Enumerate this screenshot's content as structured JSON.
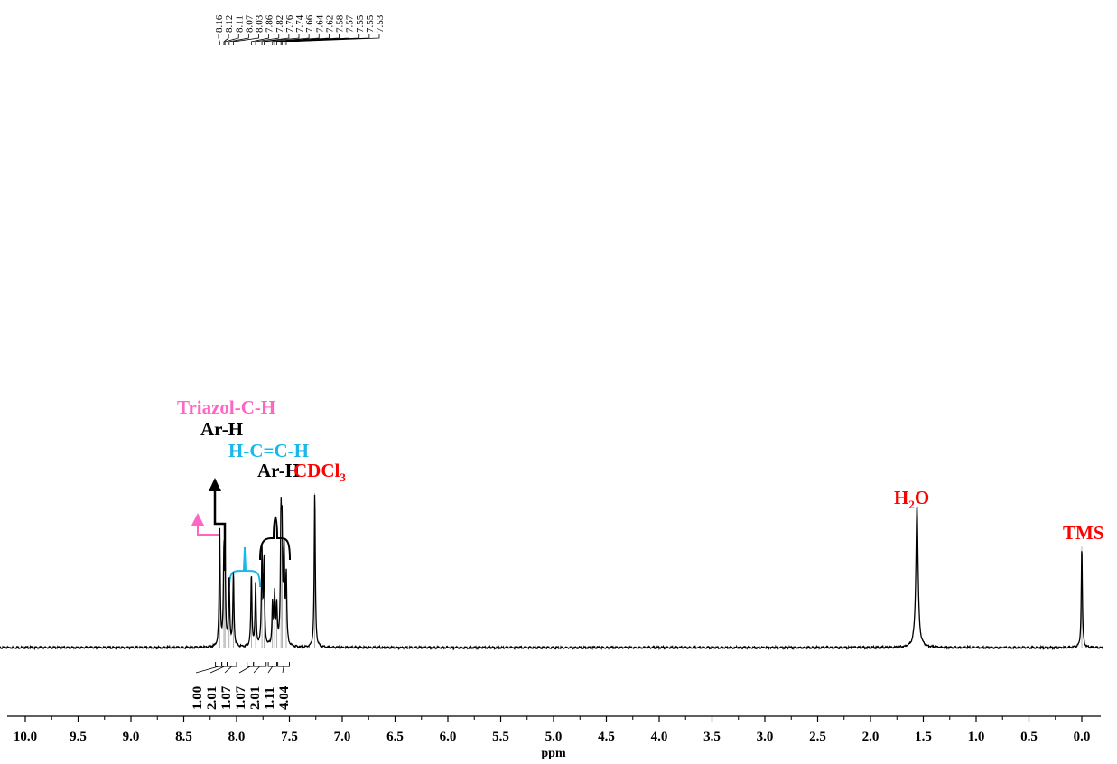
{
  "chart_data": {
    "type": "line",
    "xlabel": "ppm",
    "x_reversed": true,
    "xlim": [
      10.0,
      0.0
    ],
    "x_ticks": [
      "10.0",
      "9.5",
      "9.0",
      "8.5",
      "8.0",
      "7.5",
      "7.0",
      "6.5",
      "6.0",
      "5.5",
      "5.0",
      "4.5",
      "4.0",
      "3.5",
      "3.0",
      "2.5",
      "2.0",
      "1.5",
      "1.0",
      "0.5",
      "0.0"
    ],
    "peak_list": [
      "8.16",
      "8.12",
      "8.11",
      "8.07",
      "8.03",
      "7.86",
      "7.82",
      "7.76",
      "7.74",
      "7.66",
      "7.64",
      "7.62",
      "7.58",
      "7.57",
      "7.55",
      "7.55",
      "7.53"
    ],
    "integrals": [
      {
        "label": "1.00",
        "from": 8.2,
        "to": 8.14
      },
      {
        "label": "2.01",
        "from": 8.14,
        "to": 8.09
      },
      {
        "label": "1.07",
        "from": 8.09,
        "to": 8.0
      },
      {
        "label": "1.07",
        "from": 7.9,
        "to": 7.84
      },
      {
        "label": "2.01",
        "from": 7.84,
        "to": 7.72
      },
      {
        "label": "1.11",
        "from": 7.7,
        "to": 7.62
      },
      {
        "label": "4.04",
        "from": 7.61,
        "to": 7.5
      }
    ],
    "peaks": [
      {
        "x": 8.16,
        "y": 0.72
      },
      {
        "x": 8.12,
        "y": 0.48
      },
      {
        "x": 8.11,
        "y": 0.55
      },
      {
        "x": 8.07,
        "y": 0.42
      },
      {
        "x": 8.03,
        "y": 0.45
      },
      {
        "x": 7.86,
        "y": 0.44
      },
      {
        "x": 7.82,
        "y": 0.38
      },
      {
        "x": 7.76,
        "y": 0.58
      },
      {
        "x": 7.74,
        "y": 0.52
      },
      {
        "x": 7.66,
        "y": 0.26
      },
      {
        "x": 7.64,
        "y": 0.3
      },
      {
        "x": 7.62,
        "y": 0.24
      },
      {
        "x": 7.58,
        "y": 0.72
      },
      {
        "x": 7.57,
        "y": 0.62
      },
      {
        "x": 7.55,
        "y": 0.55
      },
      {
        "x": 7.53,
        "y": 0.42
      },
      {
        "x": 7.26,
        "y": 0.95
      },
      {
        "x": 1.56,
        "y": 0.88
      },
      {
        "x": 0.0,
        "y": 0.62
      }
    ],
    "annotations": [
      {
        "text": "Triazol-C-H",
        "color": "#ff66c4"
      },
      {
        "text": "Ar-H",
        "color": "#000000"
      },
      {
        "text": "H-C=C-H",
        "color": "#1ab8e8"
      },
      {
        "text": "Ar-H",
        "color": "#000000"
      },
      {
        "text_main": "CDCl",
        "text_sub": "3",
        "color": "#ff0000"
      },
      {
        "text_main": "H",
        "text_sub": "2",
        "text_tail": "O",
        "color": "#ff0000"
      },
      {
        "text": "TMS",
        "color": "#ff0000"
      }
    ]
  }
}
